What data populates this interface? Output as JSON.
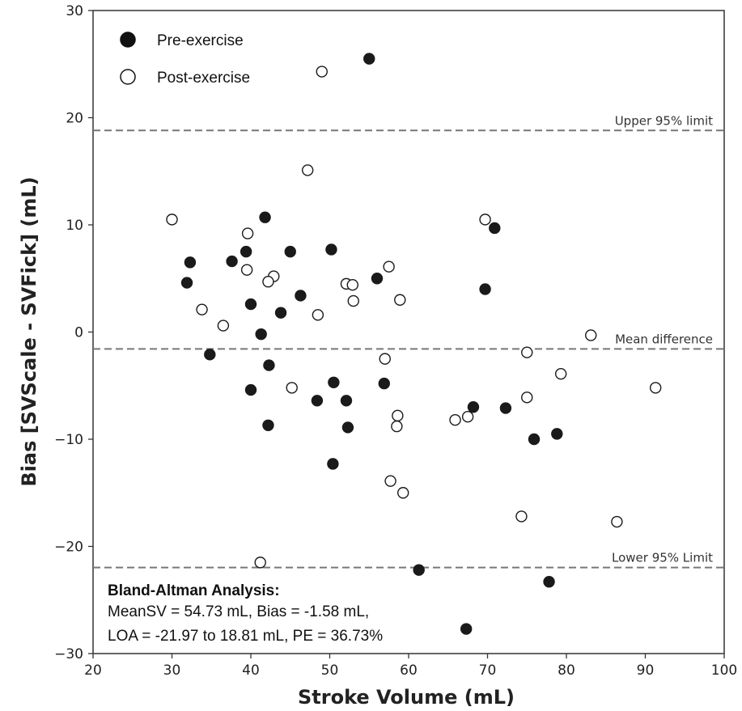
{
  "chart_data": {
    "type": "scatter",
    "xlabel": "Stroke Volume (mL)",
    "ylabel": "Bias [SVScale - SVFick] (mL)",
    "xlim": [
      20,
      100
    ],
    "ylim": [
      -30,
      30
    ],
    "x_ticks": [
      "20",
      "30",
      "40",
      "50",
      "60",
      "70",
      "80",
      "90",
      "100"
    ],
    "y_ticks": [
      "−30",
      "−20",
      "−10",
      "0",
      "10",
      "20",
      "30"
    ],
    "grid": false,
    "legend_position": "top-left",
    "series": [
      {
        "name": "Pre-exercise",
        "marker": "filled-circle",
        "color": "#1a1a1a",
        "points": [
          [
            55,
            25.5
          ],
          [
            41.8,
            10.7
          ],
          [
            70.9,
            9.7
          ],
          [
            32.3,
            6.5
          ],
          [
            37.6,
            6.6
          ],
          [
            39.4,
            7.5
          ],
          [
            45,
            7.5
          ],
          [
            50.2,
            7.7
          ],
          [
            31.9,
            4.6
          ],
          [
            56,
            5
          ],
          [
            69.7,
            4
          ],
          [
            40,
            2.6
          ],
          [
            43.8,
            1.8
          ],
          [
            46.3,
            3.4
          ],
          [
            41.3,
            -0.2
          ],
          [
            34.8,
            -2.1
          ],
          [
            42.3,
            -3.1
          ],
          [
            40,
            -5.4
          ],
          [
            48.4,
            -6.4
          ],
          [
            50.5,
            -4.7
          ],
          [
            52.1,
            -6.4
          ],
          [
            56.9,
            -4.8
          ],
          [
            68.2,
            -7
          ],
          [
            72.3,
            -7.1
          ],
          [
            42.2,
            -8.7
          ],
          [
            52.3,
            -8.9
          ],
          [
            75.9,
            -10
          ],
          [
            78.8,
            -9.5
          ],
          [
            50.4,
            -12.3
          ],
          [
            61.3,
            -22.2
          ],
          [
            77.8,
            -23.3
          ],
          [
            67.3,
            -27.7
          ]
        ]
      },
      {
        "name": "Post-exercise",
        "marker": "open-circle",
        "color": "#1a1a1a",
        "points": [
          [
            49,
            24.3
          ],
          [
            47.2,
            15.1
          ],
          [
            30,
            10.5
          ],
          [
            69.7,
            10.5
          ],
          [
            39.6,
            9.2
          ],
          [
            39.5,
            5.8
          ],
          [
            42.9,
            5.2
          ],
          [
            42.2,
            4.7
          ],
          [
            57.5,
            6.1
          ],
          [
            52.1,
            4.5
          ],
          [
            52.9,
            4.4
          ],
          [
            33.8,
            2.1
          ],
          [
            48.5,
            1.6
          ],
          [
            53,
            2.9
          ],
          [
            58.9,
            3
          ],
          [
            36.5,
            0.6
          ],
          [
            83.1,
            -0.3
          ],
          [
            75,
            -1.9
          ],
          [
            57,
            -2.5
          ],
          [
            79.3,
            -3.9
          ],
          [
            45.2,
            -5.2
          ],
          [
            75,
            -6.1
          ],
          [
            91.3,
            -5.2
          ],
          [
            58.6,
            -7.8
          ],
          [
            65.9,
            -8.2
          ],
          [
            67.5,
            -7.9
          ],
          [
            58.5,
            -8.8
          ],
          [
            57.7,
            -13.9
          ],
          [
            59.3,
            -15
          ],
          [
            74.3,
            -17.2
          ],
          [
            86.4,
            -17.7
          ],
          [
            41.2,
            -21.5
          ]
        ]
      }
    ],
    "reference_lines": [
      {
        "label": "Upper 95% limit",
        "y": 18.81
      },
      {
        "label": "Mean difference",
        "y": -1.58
      },
      {
        "label": "Lower 95% Limit",
        "y": -21.97
      }
    ],
    "annotation": {
      "title": "Bland-Altman Analysis:",
      "line1": "MeanSV = 54.73 mL, Bias = -1.58 mL,",
      "line2": "LOA = -21.97 to 18.81 mL, PE = 36.73%"
    }
  }
}
